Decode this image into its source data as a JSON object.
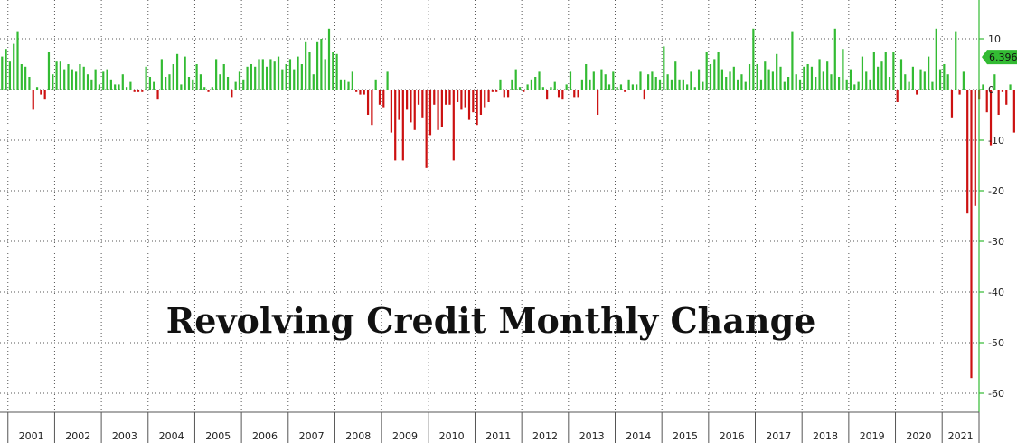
{
  "chart_data": {
    "type": "bar",
    "title": "Revolving Credit Monthly Change",
    "xlabel": "",
    "ylabel": "",
    "ylim": [
      -64,
      17
    ],
    "yticks": [
      10,
      0,
      -10,
      -20,
      -30,
      -40,
      -50,
      -60
    ],
    "ytick_labels": [
      "10",
      "0",
      "-10",
      "-20",
      "-30",
      "-40",
      "-50",
      "-60"
    ],
    "year_labels": [
      "2001",
      "2002",
      "2003",
      "2004",
      "2005",
      "2006",
      "2007",
      "2008",
      "2009",
      "2010",
      "2011",
      "2012",
      "2013",
      "2014",
      "2015",
      "2016",
      "2017",
      "2018",
      "2019",
      "2020",
      "2021"
    ],
    "grid": true,
    "legend": "none",
    "colors": {
      "positive": "#33bb33",
      "negative": "#cc1111",
      "axis": "#33bb33",
      "grid": "#555555",
      "last_value_bg": "#33bb33"
    },
    "last_value_label": "6.396",
    "series": [
      {
        "frequency": "monthly",
        "start": "2000-11",
        "values": [
          6.5,
          8.0,
          5.5,
          9.0,
          11.5,
          5.0,
          4.5,
          2.5,
          -4.0,
          0.5,
          -1.0,
          -2.0,
          7.5,
          3.0,
          5.5,
          5.5,
          4.0,
          5.0,
          4.0,
          3.5,
          5.0,
          4.5,
          3.0,
          2.0,
          4.0,
          1.0,
          3.5,
          4.0,
          2.0,
          1.0,
          1.0,
          3.0,
          0.5,
          1.5,
          -0.5,
          -0.5,
          -0.5,
          4.5,
          2.5,
          1.5,
          -2.0,
          6.0,
          2.5,
          3.0,
          5.0,
          7.0,
          1.0,
          6.5,
          2.5,
          2.0,
          5.0,
          3.0,
          0.5,
          -0.5,
          0.5,
          6.0,
          3.0,
          5.0,
          2.5,
          -1.5,
          1.5,
          3.5,
          2.0,
          4.5,
          5.0,
          4.5,
          6.0,
          6.0,
          4.5,
          6.0,
          5.5,
          6.5,
          4.0,
          5.0,
          6.0,
          4.0,
          6.5,
          5.0,
          9.5,
          7.5,
          3.0,
          9.5,
          10.0,
          6.0,
          12.0,
          7.5,
          7.0,
          2.0,
          2.0,
          1.5,
          3.5,
          -0.5,
          -1.0,
          -1.0,
          -5.0,
          -7.0,
          2.0,
          -3.0,
          -3.5,
          3.5,
          -8.5,
          -14.0,
          -6.0,
          -14.0,
          -4.0,
          -6.5,
          -8.0,
          -3.0,
          -5.5,
          -15.5,
          -9.0,
          -3.0,
          -8.0,
          -7.5,
          -3.0,
          -3.0,
          -14.0,
          -2.5,
          -4.0,
          -3.5,
          -6.0,
          -4.5,
          -7.0,
          -5.0,
          -3.5,
          -2.5,
          -0.5,
          -0.5,
          2.0,
          -1.5,
          -1.5,
          2.0,
          4.0,
          0.5,
          -0.5,
          1.0,
          2.0,
          2.5,
          3.5,
          0.5,
          -2.0,
          0.5,
          1.5,
          -1.5,
          -2.0,
          1.0,
          3.5,
          -1.5,
          -1.5,
          2.0,
          5.0,
          2.0,
          3.5,
          -5.0,
          4.0,
          3.0,
          1.0,
          3.5,
          0.5,
          1.0,
          -0.5,
          2.0,
          1.0,
          1.0,
          3.5,
          -2.0,
          3.0,
          3.5,
          2.5,
          2.0,
          8.5,
          3.0,
          2.0,
          5.5,
          2.0,
          2.0,
          1.0,
          3.5,
          0.5,
          4.0,
          1.5,
          7.5,
          5.0,
          6.0,
          7.5,
          4.0,
          2.5,
          3.5,
          4.5,
          2.0,
          3.0,
          1.5,
          5.0,
          12.0,
          5.0,
          2.0,
          5.5,
          4.0,
          3.5,
          7.0,
          4.5,
          1.5,
          2.5,
          11.5,
          3.0,
          2.0,
          4.5,
          5.0,
          4.5,
          2.5,
          6.0,
          3.5,
          5.5,
          3.0,
          12.0,
          2.5,
          8.0,
          2.0,
          4.0,
          1.0,
          1.5,
          6.5,
          3.5,
          2.0,
          7.5,
          4.5,
          5.5,
          7.5,
          2.5,
          7.5,
          -2.5,
          6.0,
          3.0,
          1.5,
          4.5,
          -1.0,
          4.0,
          3.5,
          6.5,
          1.5,
          12.0,
          4.0,
          5.0,
          3.0,
          -5.5,
          11.5,
          -1.0,
          3.5,
          -24.5,
          -57.0,
          -23.0,
          -2.0,
          1.0,
          -4.5,
          -11.0,
          3.0,
          -5.0,
          -0.5,
          -3.0,
          1.0,
          -8.5,
          8.5,
          6.396
        ]
      }
    ]
  }
}
